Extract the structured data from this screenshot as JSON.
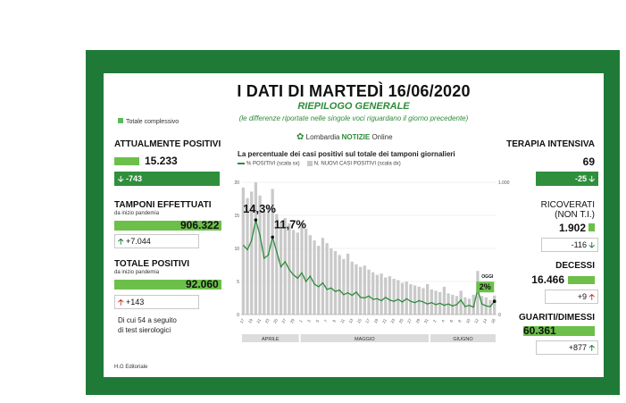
{
  "header": {
    "title": "I DATI DI MARTEDÌ 16/06/2020",
    "subtitle": "RIEPILOGO GENERALE",
    "note": "(le differenze riportate nelle singole voci riguardano il giorno precedente)",
    "legend_total": "Totale complessivo",
    "brand_prefix": "Lombardia ",
    "brand_bold": "NOTIZIE",
    "brand_suffix": " Online"
  },
  "left": {
    "positivi_label": "ATTUALMENTE POSITIVI",
    "positivi_value": "15.233",
    "positivi_delta": "-743",
    "tamponi_label": "TAMPONI EFFETTUATI",
    "tamponi_sub": "da inizio pandemia",
    "tamponi_value": "906.322",
    "tamponi_delta": "+7.044",
    "totpos_label": "TOTALE POSITIVI",
    "totpos_sub": "da inizio pandemia",
    "totpos_value": "92.060",
    "totpos_delta": "+143",
    "sierologici_1": "Di cui 54 a seguito",
    "sierologici_2": "di test sierologici"
  },
  "right": {
    "ti_label": "TERAPIA INTENSIVA",
    "ti_value": "69",
    "ti_delta": "-25",
    "ric_label_1": "RICOVERATI",
    "ric_label_2": "(NON T.I.)",
    "ric_value": "1.902",
    "ric_delta": "-116",
    "dec_label": "DECESSI",
    "dec_value": "16.466",
    "dec_delta": "+9",
    "gua_label": "GUARITI/DIMESSI",
    "gua_value": "60.361",
    "gua_delta": "+877"
  },
  "footer": "H.G Editoriale",
  "colors": {
    "frame": "#1f7a37",
    "accent_green": "#6cc04a",
    "line_green": "#2e8b3a",
    "bar_grey": "#c9c9c9",
    "arrow_red": "#c0392b"
  },
  "chart_data": {
    "type": "bar",
    "title": "La percentuale dei casi positivi sul totale dei tamponi giornalieri",
    "legend": [
      "% POSITIVI (scala sx)",
      "N. NUOVI CASI POSITIVI (scala dx)"
    ],
    "months": [
      "APRILE",
      "MAGGIO",
      "GIUGNO"
    ],
    "y_ticks_left": [
      "20",
      "15",
      "10",
      "5",
      "0"
    ],
    "y_ticks_right": [
      "1.000",
      "0"
    ],
    "ylim_left": [
      0,
      20
    ],
    "ylim_right": [
      0,
      1000
    ],
    "annotations": [
      {
        "text": "14,3%",
        "index": 3
      },
      {
        "text": "11,7%",
        "index": 7
      },
      {
        "text": "OGGI",
        "index": 60
      },
      {
        "text": "2%",
        "index": 60
      }
    ],
    "x_tick_labels": [
      "17",
      "19",
      "21",
      "23",
      "25",
      "27",
      "29",
      "1",
      "3",
      "5",
      "7",
      "9",
      "11",
      "13",
      "15",
      "17",
      "19",
      "21",
      "23",
      "25",
      "27",
      "29",
      "31",
      "2",
      "4",
      "6",
      "8",
      "10",
      "12",
      "14",
      "16"
    ],
    "percent_values": [
      10.5,
      9.8,
      11.2,
      14.3,
      12.0,
      8.5,
      9.0,
      11.7,
      9.5,
      7.2,
      8.0,
      6.8,
      6.0,
      5.5,
      6.3,
      5.0,
      5.8,
      4.6,
      4.2,
      4.8,
      3.8,
      4.0,
      3.5,
      3.7,
      3.0,
      3.3,
      2.9,
      3.4,
      2.6,
      2.5,
      2.8,
      2.3,
      2.4,
      2.1,
      2.6,
      2.2,
      2.0,
      2.3,
      1.9,
      2.4,
      2.0,
      1.8,
      2.1,
      1.9,
      1.6,
      1.8,
      1.5,
      1.7,
      1.4,
      1.6,
      1.3,
      1.5,
      2.2,
      1.2,
      1.4,
      1.1,
      3.8,
      1.6,
      1.3,
      1.2,
      2.0
    ],
    "new_cases": [
      960,
      880,
      930,
      1000,
      900,
      780,
      820,
      950,
      760,
      700,
      730,
      690,
      640,
      620,
      700,
      650,
      600,
      560,
      520,
      580,
      540,
      500,
      480,
      450,
      420,
      460,
      400,
      380,
      360,
      370,
      340,
      320,
      300,
      310,
      280,
      290,
      270,
      260,
      240,
      250,
      230,
      220,
      210,
      200,
      230,
      190,
      180,
      170,
      210,
      160,
      150,
      140,
      180,
      130,
      120,
      150,
      330,
      140,
      130,
      110,
      143
    ]
  }
}
